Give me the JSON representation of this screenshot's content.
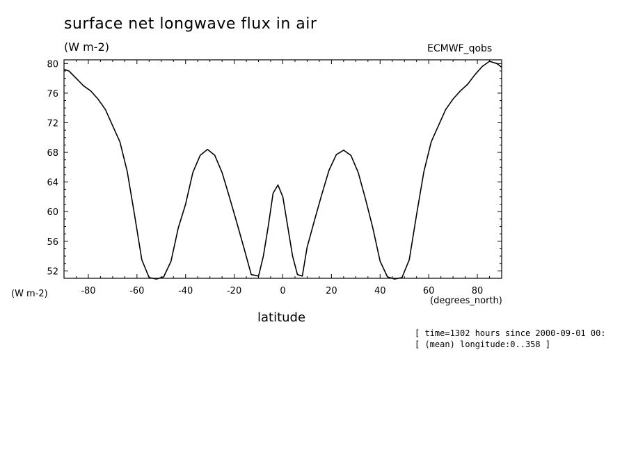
{
  "chart_data": {
    "type": "line",
    "title": "surface net longwave flux in air",
    "units": "(W m-2)",
    "source_label": "ECMWF_qobs",
    "xlabel": "latitude",
    "x_units": "(degrees_north)",
    "y_units": "(W m-2)",
    "xlim": [
      -90,
      90
    ],
    "ylim": [
      51,
      80.5
    ],
    "x_ticks": [
      -80,
      -60,
      -40,
      -20,
      0,
      20,
      40,
      60,
      80
    ],
    "y_ticks": [
      52,
      56,
      60,
      64,
      68,
      72,
      76,
      80
    ],
    "series": [
      {
        "name": "ECMWF_qobs",
        "x": [
          -90,
          -88,
          -85,
          -82,
          -79,
          -76,
          -73,
          -70,
          -67,
          -64,
          -61,
          -58,
          -55,
          -52,
          -49,
          -46,
          -43,
          -40,
          -37,
          -34,
          -31,
          -28,
          -25,
          -22,
          -19,
          -16,
          -13,
          -10,
          -8,
          -6,
          -4,
          -2,
          0,
          2,
          4,
          6,
          8,
          10,
          13,
          16,
          19,
          22,
          25,
          28,
          31,
          34,
          37,
          40,
          43,
          46,
          49,
          52,
          55,
          58,
          61,
          64,
          67,
          70,
          73,
          76,
          79,
          82,
          85,
          88,
          90
        ],
        "values": [
          79.2,
          79.0,
          78.0,
          77.0,
          76.3,
          75.2,
          73.8,
          71.6,
          69.4,
          65.4,
          59.6,
          53.5,
          51.1,
          50.9,
          51.2,
          53.3,
          57.8,
          61.0,
          65.3,
          67.6,
          68.4,
          67.6,
          65.3,
          62.0,
          58.6,
          55.1,
          51.5,
          51.3,
          54.0,
          58.0,
          62.5,
          63.6,
          62.0,
          58.0,
          54.0,
          51.5,
          51.3,
          55.2,
          58.8,
          62.3,
          65.6,
          67.7,
          68.3,
          67.6,
          65.3,
          61.7,
          57.8,
          53.3,
          51.2,
          50.9,
          51.1,
          53.5,
          59.6,
          65.4,
          69.4,
          71.6,
          73.8,
          75.2,
          76.3,
          77.2,
          78.5,
          79.6,
          80.3,
          80.0,
          79.5
        ]
      }
    ]
  },
  "footnotes": {
    "time": "[ time=1302 hours since 2000-09-01 00:",
    "longitude": "[ (mean) longitude:0..358 ]"
  }
}
